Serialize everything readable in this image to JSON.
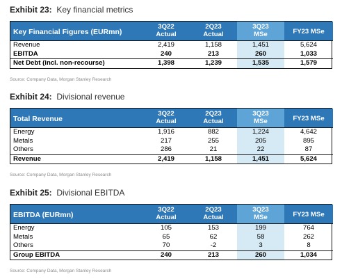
{
  "exhibits": [
    {
      "number": "Exhibit 23:",
      "title": "Key financial metrics",
      "header": "Key Financial Figures (EURmn)",
      "columns": [
        {
          "top": "3Q22",
          "bottom": "Actual"
        },
        {
          "top": "2Q23",
          "bottom": "Actual"
        },
        {
          "top": "3Q23",
          "bottom": "MSe"
        },
        {
          "top": "FY23 MSe",
          "bottom": ""
        }
      ],
      "rows": [
        {
          "label": "Revenue",
          "values": [
            "2,419",
            "1,158",
            "1,451",
            "5,624"
          ]
        },
        {
          "label": "EBITDA",
          "values": [
            "240",
            "213",
            "260",
            "1,033"
          ]
        },
        {
          "label": "Net Debt (incl. non-recourse)",
          "values": [
            "1,398",
            "1,239",
            "1,535",
            "1,579"
          ]
        }
      ],
      "source": "Source: Company Data, Morgan Stanley Research"
    },
    {
      "number": "Exhibit 24:",
      "title": "Divisional revenue",
      "header": "Total Revenue",
      "columns": [
        {
          "top": "3Q22",
          "bottom": "Actual"
        },
        {
          "top": "2Q23",
          "bottom": "Actual"
        },
        {
          "top": "3Q23",
          "bottom": "MSe"
        },
        {
          "top": "FY23 MSe",
          "bottom": ""
        }
      ],
      "rows": [
        {
          "label": "Energy",
          "values": [
            "1,916",
            "882",
            "1,224",
            "4,642"
          ]
        },
        {
          "label": "Metals",
          "values": [
            "217",
            "255",
            "205",
            "895"
          ]
        },
        {
          "label": "Others",
          "values": [
            "286",
            "21",
            "22",
            "87"
          ]
        },
        {
          "label": "Revenue",
          "values": [
            "2,419",
            "1,158",
            "1,451",
            "5,624"
          ]
        }
      ],
      "source": "Source: Company Data, Morgan Stanley Research"
    },
    {
      "number": "Exhibit 25:",
      "title": "Divisional EBITDA",
      "header": "EBITDA (EURmn)",
      "columns": [
        {
          "top": "3Q22",
          "bottom": "Actual"
        },
        {
          "top": "2Q23",
          "bottom": "Actual"
        },
        {
          "top": "3Q23",
          "bottom": "MSe"
        },
        {
          "top": "FY23 MSe",
          "bottom": ""
        }
      ],
      "rows": [
        {
          "label": "Energy",
          "values": [
            "105",
            "153",
            "199",
            "764"
          ]
        },
        {
          "label": "Metals",
          "values": [
            "65",
            "62",
            "58",
            "262"
          ]
        },
        {
          "label": "Others",
          "values": [
            "70",
            "-2",
            "3",
            "8"
          ]
        },
        {
          "label": "Group EBITDA",
          "values": [
            "240",
            "213",
            "260",
            "1,034"
          ]
        }
      ],
      "source": "Source: Company Data, Morgan Stanley Research"
    }
  ],
  "colors": {
    "header_blue": "#2e78b7",
    "mse_header_blue": "#5fa4d6",
    "mse_cell_tint": "#d6eaf6"
  }
}
